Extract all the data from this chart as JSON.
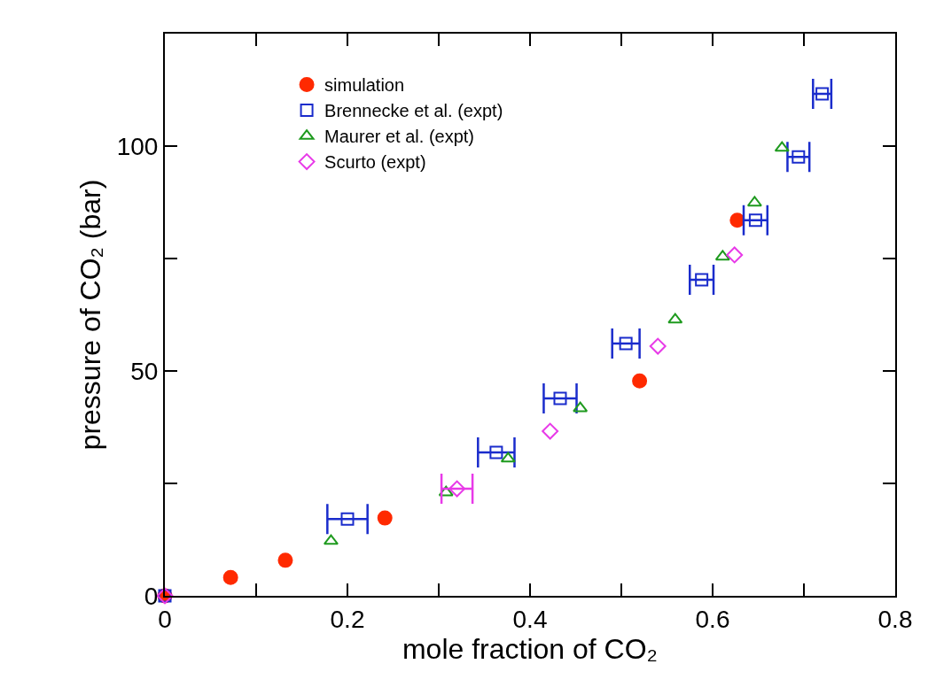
{
  "chart_data": {
    "type": "scatter",
    "xlabel": "mole fraction of CO₂",
    "ylabel": "pressure of CO₂ (bar)",
    "xlim": [
      0,
      0.8
    ],
    "xticks": [
      0,
      {
        "value": 0.1,
        "label": null
      },
      0.2,
      {
        "value": 0.3,
        "label": null
      },
      0.4,
      {
        "value": 0.5,
        "label": null
      },
      0.6,
      {
        "value": 0.7,
        "label": null
      },
      0.8
    ],
    "ylim": [
      0,
      125
    ],
    "yticks": [
      0,
      {
        "value": 25,
        "label": null
      },
      50,
      {
        "value": 75,
        "label": null
      },
      100
    ],
    "grid": false,
    "legend": "top left",
    "series": [
      {
        "name": "simulation",
        "color": "#ff2a00",
        "marker": "circle",
        "x": [
          0,
          0.072,
          0.132,
          0.241,
          0.52,
          0.627
        ],
        "values": [
          0,
          4.1,
          7.9,
          17.3,
          47.8,
          83.5
        ]
      },
      {
        "name": "Brennecke et al. (expt)",
        "color": "#1a2ccc",
        "marker": "square",
        "x": [
          0,
          0.2,
          0.363,
          0.433,
          0.505,
          0.588,
          0.647,
          0.694,
          0.72
        ],
        "values": [
          0,
          17.1,
          31.9,
          43.9,
          56.1,
          70.3,
          83.5,
          97.6,
          111.6
        ],
        "xerrors": [
          null,
          0.022,
          0.02,
          0.018,
          0.015,
          0.013,
          0.013,
          0.012,
          0.01
        ]
      },
      {
        "name": "Maurer et al. (expt)",
        "color": "#1e9a1e",
        "marker": "triangle",
        "x": [
          0.182,
          0.308,
          0.376,
          0.455,
          0.559,
          0.611,
          0.646,
          0.676
        ],
        "values": [
          12.2,
          23.0,
          30.5,
          41.7,
          61.4,
          75.4,
          87.4,
          99.6
        ]
      },
      {
        "name": "Scurto (expt)",
        "color": "#e83ae8",
        "marker": "diamond",
        "x": [
          0,
          0.32,
          0.422,
          0.54,
          0.624
        ],
        "values": [
          0,
          23.8,
          36.6,
          55.5,
          75.8
        ],
        "xerrors": [
          null,
          0.017,
          null,
          null,
          null
        ]
      }
    ]
  }
}
